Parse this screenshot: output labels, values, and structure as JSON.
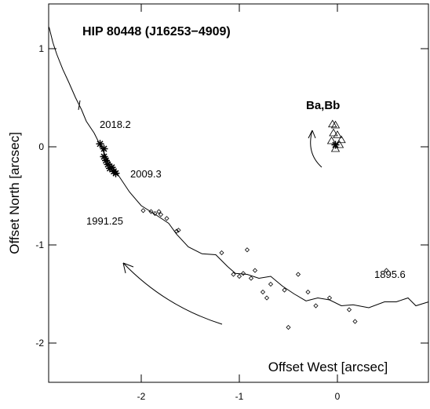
{
  "chart_data": {
    "type": "scatter",
    "title": "HIP 80448 (J16253−4909)",
    "x_label": "Offset West [arcsec]",
    "y_label": "Offset North [arcsec]",
    "annotations": [
      "2018.2",
      "2009.3",
      "1991.25",
      "1895.6",
      "Ba,Bb"
    ],
    "xlim": [
      -2.944,
      0.928
    ],
    "ylim": [
      -2.4,
      1.456
    ],
    "xticks": [
      -2,
      -1,
      0
    ],
    "yticks": [
      -2,
      -1,
      0,
      1
    ],
    "color": "#000000",
    "series": [
      {
        "marker": "line",
        "x": [
          -2.94,
          -2.9,
          -2.86,
          -2.8,
          -2.74,
          -2.67,
          -2.61,
          -2.56,
          -2.48,
          -2.42,
          -2.36,
          -2.28,
          -2.2,
          -2.12,
          -2.0,
          -1.84,
          -1.72,
          -1.64,
          -1.52,
          -1.38,
          -1.24,
          -1.12,
          -1.04,
          -0.92,
          -0.8,
          -0.68,
          -0.56,
          -0.44,
          -0.32,
          -0.2,
          -0.08,
          0.04,
          0.16,
          0.32,
          0.48,
          0.6,
          0.72,
          0.8,
          0.93
        ],
        "y": [
          1.22,
          1.06,
          0.94,
          0.79,
          0.66,
          0.5,
          0.38,
          0.26,
          0.14,
          0.02,
          -0.1,
          -0.22,
          -0.34,
          -0.46,
          -0.6,
          -0.7,
          -0.78,
          -0.89,
          -1.02,
          -1.09,
          -1.1,
          -1.22,
          -1.29,
          -1.3,
          -1.34,
          -1.32,
          -1.42,
          -1.5,
          -1.57,
          -1.54,
          -1.56,
          -1.62,
          -1.61,
          -1.64,
          -1.58,
          -1.58,
          -1.54,
          -1.62,
          -1.58
        ]
      },
      {
        "marker": "star",
        "x": [
          -2.42,
          -2.38,
          -2.38,
          -2.36,
          -2.34,
          -2.32,
          -2.3,
          -2.28,
          -2.26
        ],
        "y": [
          0.03,
          -0.02,
          -0.1,
          -0.14,
          -0.18,
          -0.22,
          -0.21,
          -0.25,
          -0.27
        ]
      },
      {
        "marker": "diamond",
        "x": [
          -1.98,
          -1.9,
          -1.86,
          -1.82,
          -1.8,
          -1.74,
          -1.64,
          -1.62,
          -1.18,
          -1.06,
          -1.0,
          -0.96,
          -0.92,
          -0.88,
          -0.84,
          -0.76,
          -0.72,
          -0.68,
          -0.54,
          -0.5,
          -0.4,
          -0.3,
          -0.22,
          -0.08,
          0.12,
          0.18,
          0.5
        ],
        "y": [
          -0.65,
          -0.66,
          -0.68,
          -0.66,
          -0.69,
          -0.73,
          -0.86,
          -0.85,
          -1.08,
          -1.3,
          -1.32,
          -1.29,
          -1.05,
          -1.34,
          -1.26,
          -1.48,
          -1.54,
          -1.4,
          -1.46,
          -1.84,
          -1.3,
          -1.48,
          -1.62,
          -1.54,
          -1.66,
          -1.78,
          -1.26
        ]
      },
      {
        "marker": "triangle",
        "x": [
          -0.05,
          -0.02,
          -0.04,
          0.0,
          -0.06,
          0.02,
          -0.02,
          0.04
        ],
        "y": [
          0.23,
          0.22,
          0.14,
          0.12,
          0.06,
          0.02,
          -0.02,
          0.07
        ]
      },
      {
        "marker": "star",
        "x": [
          -0.02
        ],
        "y": [
          0.02
        ]
      }
    ]
  }
}
